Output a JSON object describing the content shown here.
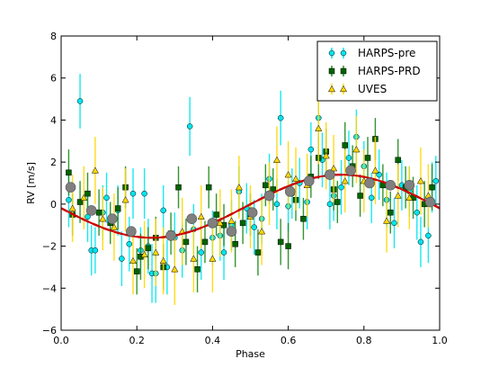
{
  "chart_data": {
    "type": "scatter",
    "xlabel": "Phase",
    "ylabel": "RV [m/s]",
    "xlim": [
      0.0,
      1.0
    ],
    "ylim": [
      -6,
      8
    ],
    "xticks": [
      0.0,
      0.2,
      0.4,
      0.6,
      0.8,
      1.0
    ],
    "xtick_labels": [
      "0.0",
      "0.2",
      "0.4",
      "0.6",
      "0.8",
      "1.0"
    ],
    "yticks": [
      -6,
      -4,
      -2,
      0,
      2,
      4,
      6,
      8
    ],
    "ytick_labels": [
      "−6",
      "−4",
      "−2",
      "0",
      "2",
      "4",
      "6",
      "8"
    ],
    "grid": false,
    "legend_position": "top-right",
    "legend": [
      "HARPS-pre",
      "HARPS-PRD",
      "UVES"
    ],
    "series": [
      {
        "name": "HARPS-pre",
        "marker": "circle",
        "color": "#00e5ee",
        "points": [
          [
            0.02,
            0.2,
            1.3
          ],
          [
            0.05,
            4.9,
            1.3
          ],
          [
            0.07,
            -0.6,
            1.2
          ],
          [
            0.08,
            -2.2,
            1.2
          ],
          [
            0.09,
            -2.2,
            1.1
          ],
          [
            0.11,
            -0.4,
            1.3
          ],
          [
            0.12,
            0.3,
            1.2
          ],
          [
            0.15,
            -0.3,
            1.2
          ],
          [
            0.16,
            -2.6,
            1.3
          ],
          [
            0.18,
            -1.9,
            1.3
          ],
          [
            0.19,
            0.5,
            1.2
          ],
          [
            0.21,
            -2.2,
            1.1
          ],
          [
            0.22,
            0.5,
            1.2
          ],
          [
            0.23,
            -2.0,
            1.3
          ],
          [
            0.24,
            -3.3,
            1.4
          ],
          [
            0.25,
            -3.3,
            1.4
          ],
          [
            0.27,
            -0.3,
            1.2
          ],
          [
            0.28,
            -3.0,
            1.3
          ],
          [
            0.3,
            -1.6,
            1.2
          ],
          [
            0.32,
            -2.2,
            1.3
          ],
          [
            0.34,
            3.7,
            1.4
          ],
          [
            0.35,
            -1.2,
            1.2
          ],
          [
            0.37,
            -2.3,
            1.3
          ],
          [
            0.4,
            -1.6,
            1.3
          ],
          [
            0.42,
            -1.5,
            1.2
          ],
          [
            0.43,
            -2.3,
            1.3
          ],
          [
            0.45,
            -1.0,
            1.2
          ],
          [
            0.47,
            0.6,
            1.2
          ],
          [
            0.49,
            -0.2,
            1.2
          ],
          [
            0.51,
            -1.1,
            1.3
          ],
          [
            0.53,
            -0.7,
            1.2
          ],
          [
            0.55,
            1.2,
            1.2
          ],
          [
            0.57,
            0.0,
            1.2
          ],
          [
            0.58,
            4.1,
            1.3
          ],
          [
            0.6,
            -0.1,
            1.2
          ],
          [
            0.61,
            0.5,
            1.2
          ],
          [
            0.63,
            1.0,
            1.2
          ],
          [
            0.65,
            0.1,
            1.3
          ],
          [
            0.66,
            2.6,
            1.3
          ],
          [
            0.68,
            4.1,
            1.3
          ],
          [
            0.69,
            2.1,
            1.3
          ],
          [
            0.71,
            0.0,
            1.2
          ],
          [
            0.72,
            0.4,
            1.2
          ],
          [
            0.74,
            0.8,
            1.3
          ],
          [
            0.76,
            2.2,
            1.3
          ],
          [
            0.78,
            3.2,
            1.3
          ],
          [
            0.8,
            1.8,
            1.2
          ],
          [
            0.82,
            0.3,
            1.2
          ],
          [
            0.84,
            1.4,
            1.2
          ],
          [
            0.86,
            0.2,
            1.3
          ],
          [
            0.88,
            -0.9,
            1.2
          ],
          [
            0.9,
            0.9,
            1.2
          ],
          [
            0.92,
            0.6,
            1.2
          ],
          [
            0.94,
            -0.4,
            1.3
          ],
          [
            0.95,
            -1.8,
            1.2
          ],
          [
            0.97,
            -1.5,
            1.3
          ],
          [
            0.98,
            0.8,
            1.2
          ],
          [
            0.99,
            1.1,
            1.2
          ]
        ]
      },
      {
        "name": "HARPS-PRD",
        "marker": "square",
        "color": "#006400",
        "points": [
          [
            0.02,
            1.5,
            1.1
          ],
          [
            0.03,
            -0.5,
            1.0
          ],
          [
            0.05,
            0.1,
            1.0
          ],
          [
            0.07,
            0.5,
            1.0
          ],
          [
            0.1,
            -0.4,
            1.1
          ],
          [
            0.13,
            -0.9,
            1.0
          ],
          [
            0.15,
            -0.2,
            1.0
          ],
          [
            0.17,
            0.8,
            1.0
          ],
          [
            0.2,
            -3.2,
            1.1
          ],
          [
            0.21,
            -2.5,
            1.1
          ],
          [
            0.23,
            -2.1,
            1.0
          ],
          [
            0.25,
            -1.6,
            1.0
          ],
          [
            0.27,
            -3.0,
            1.1
          ],
          [
            0.29,
            -1.4,
            1.0
          ],
          [
            0.31,
            0.8,
            1.0
          ],
          [
            0.33,
            -1.8,
            1.1
          ],
          [
            0.36,
            -3.1,
            1.1
          ],
          [
            0.38,
            -1.8,
            1.0
          ],
          [
            0.39,
            0.8,
            1.0
          ],
          [
            0.41,
            -0.5,
            1.0
          ],
          [
            0.43,
            -1.0,
            1.0
          ],
          [
            0.46,
            -1.9,
            1.1
          ],
          [
            0.48,
            -0.9,
            1.0
          ],
          [
            0.5,
            -0.5,
            1.0
          ],
          [
            0.52,
            -2.3,
            1.1
          ],
          [
            0.54,
            0.9,
            1.0
          ],
          [
            0.56,
            0.7,
            1.0
          ],
          [
            0.58,
            -1.8,
            1.1
          ],
          [
            0.6,
            -2.0,
            1.1
          ],
          [
            0.62,
            0.2,
            1.0
          ],
          [
            0.64,
            -0.7,
            1.0
          ],
          [
            0.66,
            1.3,
            1.0
          ],
          [
            0.68,
            2.2,
            1.0
          ],
          [
            0.7,
            2.5,
            1.1
          ],
          [
            0.72,
            0.7,
            1.0
          ],
          [
            0.73,
            0.1,
            1.0
          ],
          [
            0.75,
            2.8,
            1.1
          ],
          [
            0.77,
            1.8,
            1.0
          ],
          [
            0.79,
            0.4,
            1.0
          ],
          [
            0.81,
            2.2,
            1.0
          ],
          [
            0.83,
            3.1,
            1.0
          ],
          [
            0.85,
            0.9,
            1.0
          ],
          [
            0.87,
            -0.4,
            1.0
          ],
          [
            0.89,
            2.1,
            1.0
          ],
          [
            0.91,
            0.8,
            1.0
          ],
          [
            0.93,
            0.3,
            1.0
          ],
          [
            0.96,
            0.0,
            1.1
          ],
          [
            0.98,
            0.8,
            1.1
          ]
        ]
      },
      {
        "name": "UVES",
        "marker": "triangle",
        "color": "#ffd700",
        "points": [
          [
            0.03,
            -0.2,
            1.6
          ],
          [
            0.06,
            0.3,
            1.5
          ],
          [
            0.09,
            1.6,
            1.6
          ],
          [
            0.11,
            -0.7,
            1.5
          ],
          [
            0.14,
            -1.1,
            1.6
          ],
          [
            0.17,
            0.2,
            1.5
          ],
          [
            0.19,
            -2.7,
            1.6
          ],
          [
            0.22,
            -2.4,
            1.6
          ],
          [
            0.25,
            -2.3,
            1.6
          ],
          [
            0.27,
            -2.7,
            1.6
          ],
          [
            0.3,
            -3.1,
            1.7
          ],
          [
            0.32,
            -1.3,
            1.6
          ],
          [
            0.35,
            -2.6,
            1.6
          ],
          [
            0.37,
            -0.6,
            1.5
          ],
          [
            0.4,
            -2.6,
            1.6
          ],
          [
            0.42,
            -0.9,
            1.6
          ],
          [
            0.45,
            -0.8,
            1.5
          ],
          [
            0.47,
            0.8,
            1.5
          ],
          [
            0.5,
            -0.6,
            1.5
          ],
          [
            0.53,
            -1.3,
            1.6
          ],
          [
            0.55,
            0.5,
            1.5
          ],
          [
            0.57,
            2.1,
            1.6
          ],
          [
            0.6,
            1.4,
            1.6
          ],
          [
            0.62,
            1.2,
            1.5
          ],
          [
            0.65,
            0.9,
            1.5
          ],
          [
            0.68,
            3.6,
            1.7
          ],
          [
            0.7,
            2.3,
            1.6
          ],
          [
            0.72,
            1.7,
            1.6
          ],
          [
            0.75,
            1.1,
            1.5
          ],
          [
            0.78,
            2.6,
            1.6
          ],
          [
            0.8,
            1.1,
            1.5
          ],
          [
            0.83,
            1.6,
            1.6
          ],
          [
            0.86,
            -0.8,
            1.5
          ],
          [
            0.89,
            0.4,
            1.5
          ],
          [
            0.92,
            0.3,
            1.5
          ],
          [
            0.95,
            1.1,
            1.6
          ],
          [
            0.97,
            0.4,
            1.5
          ]
        ]
      },
      {
        "name": "",
        "marker": "binned-circle",
        "color": "#808080",
        "points": [
          [
            0.025,
            0.8
          ],
          [
            0.08,
            -0.3
          ],
          [
            0.135,
            -0.7
          ],
          [
            0.185,
            -1.3
          ],
          [
            0.29,
            -1.5
          ],
          [
            0.345,
            -0.7
          ],
          [
            0.4,
            -0.9
          ],
          [
            0.45,
            -1.3
          ],
          [
            0.505,
            -0.4
          ],
          [
            0.55,
            0.4
          ],
          [
            0.605,
            0.6
          ],
          [
            0.655,
            1.1
          ],
          [
            0.71,
            1.4
          ],
          [
            0.765,
            1.6
          ],
          [
            0.815,
            1.0
          ],
          [
            0.87,
            0.9
          ],
          [
            0.92,
            0.9
          ],
          [
            0.975,
            0.1
          ]
        ]
      }
    ],
    "model_curves": [
      {
        "style": "solid",
        "color": "#cc0000",
        "amplitude": 1.5,
        "offset": -0.1,
        "phase_of_min": 0.24
      },
      {
        "style": "dashed",
        "color": "#cc0000",
        "amplitude": 1.5,
        "offset": -0.1,
        "phase_of_min": 0.24
      }
    ]
  }
}
